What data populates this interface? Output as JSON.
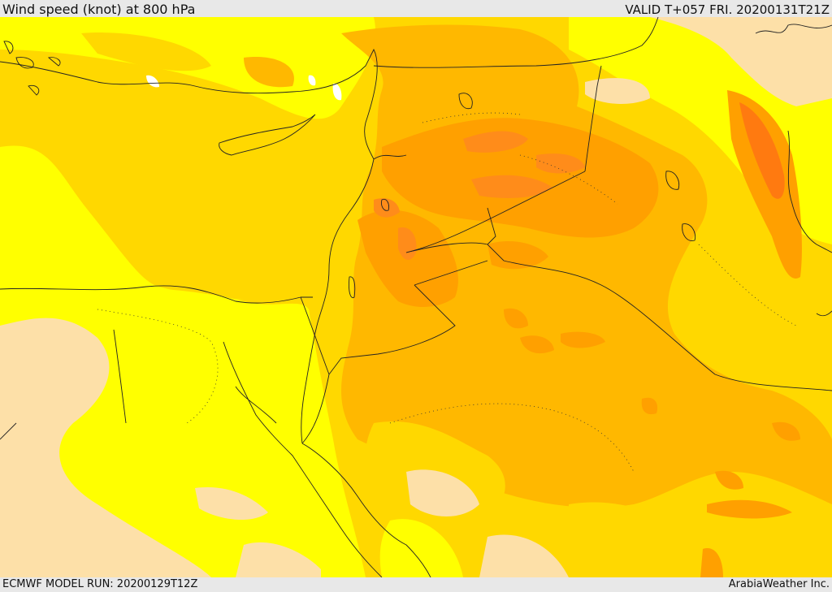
{
  "header": {
    "title": "Wind speed (knot) at 800 hPa",
    "valid": "VALID T+057 FRI. 20200131T21Z"
  },
  "footer": {
    "model_run": "ECMWF MODEL RUN: 20200129T12Z",
    "credit": "ArabiaWeather Inc."
  },
  "map": {
    "fill_colors": {
      "light_tan": "#fde0a8",
      "yellow": "#ffff00",
      "gold": "#ffd800",
      "amber": "#ffb800",
      "orange": "#ffa000",
      "dark_orange": "#ff8c1a",
      "deep_orange": "#ff7a10",
      "white": "#ffffff"
    },
    "line_color": "#222222"
  }
}
